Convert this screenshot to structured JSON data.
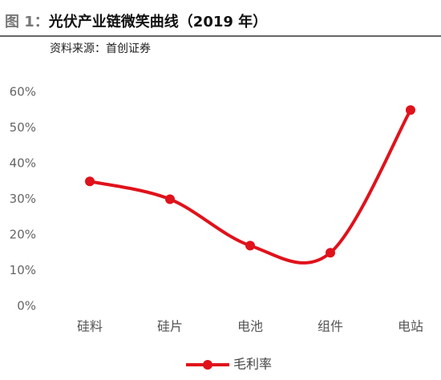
{
  "header": {
    "figure_label": "图 1：",
    "title": "光伏产业链微笑曲线（2019 年）",
    "source": "资料来源：首创证券"
  },
  "chart_data": {
    "type": "line",
    "smooth": true,
    "legend": "bottom",
    "categories": [
      "硅料",
      "硅片",
      "电池",
      "组件",
      "电站"
    ],
    "series": [
      {
        "name": "毛利率",
        "color": "#e0121b",
        "values": [
          35,
          30,
          17,
          15,
          55
        ]
      }
    ],
    "ylim": [
      0,
      60
    ],
    "yticks": [
      {
        "value": 0,
        "label": "0%"
      },
      {
        "value": 10,
        "label": "10%"
      },
      {
        "value": 20,
        "label": "20%"
      },
      {
        "value": 30,
        "label": "30%"
      },
      {
        "value": 40,
        "label": "40%"
      },
      {
        "value": 50,
        "label": "50%"
      },
      {
        "value": 60,
        "label": "60%"
      }
    ]
  }
}
